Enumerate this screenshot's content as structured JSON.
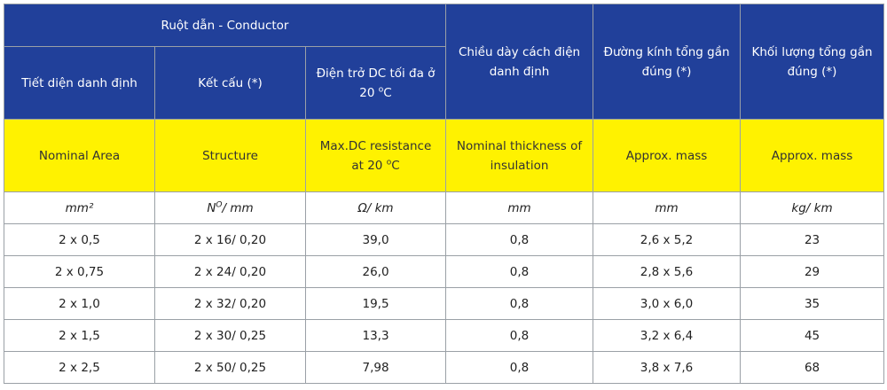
{
  "header": {
    "group_title": "Ruột dẫn - Conductor",
    "col_nominal_area_vi": "Tiết diện danh định",
    "col_structure_vi": "Kết cấu (*)",
    "col_resistance_vi_line1": "Điện trở DC tối đa ở",
    "col_resistance_vi_line2": "20",
    "col_resistance_vi_unit": "C",
    "col_thickness_vi": "Chiều dày cách điện danh định",
    "col_diameter_vi": "Đường kính tổng gần đúng (*)",
    "col_mass_vi": "Khối lượng tổng gần đúng (*)"
  },
  "english_header": {
    "nominal_area": "Nominal Area",
    "structure": "Structure",
    "resistance_line1": "Max.DC resistance",
    "resistance_line2": "at 20",
    "resistance_unit": "C",
    "thickness": "Nominal thickness of insulation",
    "diameter": "Approx. mass",
    "mass": "Approx. mass"
  },
  "units": {
    "area": "mm²",
    "structure_n": "N",
    "structure_rest": "/ mm",
    "resistance": "Ω/ km",
    "thickness": "mm",
    "diameter": "mm",
    "mass": "kg/ km"
  },
  "rows": [
    {
      "area": "2 x 0,5",
      "structure": "2 x 16/ 0,20",
      "resistance": "39,0",
      "thickness": "0,8",
      "diameter": "2,6 x 5,2",
      "mass": "23"
    },
    {
      "area": "2 x 0,75",
      "structure": "2 x 24/ 0,20",
      "resistance": "26,0",
      "thickness": "0,8",
      "diameter": "2,8 x 5,6",
      "mass": "29"
    },
    {
      "area": "2 x 1,0",
      "structure": "2 x 32/ 0,20",
      "resistance": "19,5",
      "thickness": "0,8",
      "diameter": "3,0 x 6,0",
      "mass": "35"
    },
    {
      "area": "2 x 1,5",
      "structure": "2 x 30/ 0,25",
      "resistance": "13,3",
      "thickness": "0,8",
      "diameter": "3,2 x 6,4",
      "mass": "45"
    },
    {
      "area": "2 x 2,5",
      "structure": "2 x 50/ 0,25",
      "resistance": "7,98",
      "thickness": "0,8",
      "diameter": "3,8 x 7,6",
      "mass": "68"
    }
  ],
  "colors": {
    "header_blue": "#21409a",
    "header_yellow": "#fff200",
    "grid": "#9aa0a6"
  }
}
